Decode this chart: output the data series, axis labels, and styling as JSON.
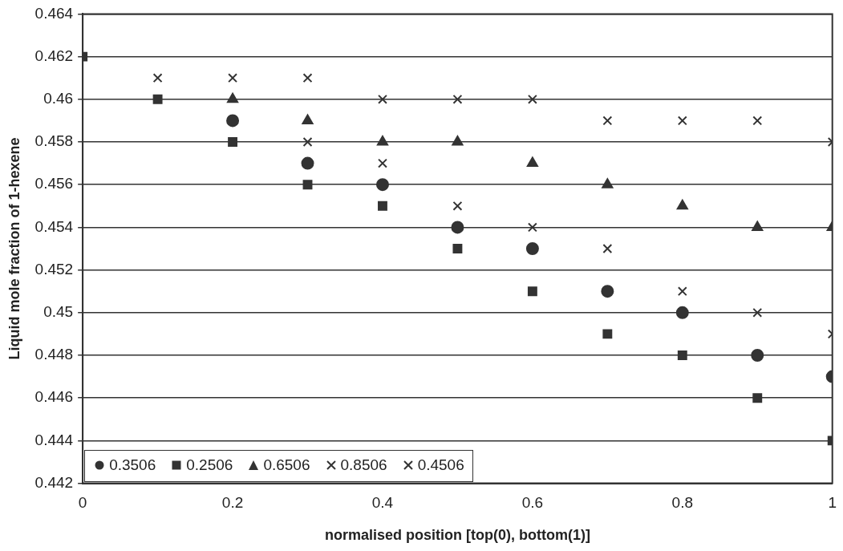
{
  "chart_data": {
    "type": "scatter",
    "xlabel": "normalised position [top(0), bottom(1)]",
    "ylabel": "Liquid mole fraction of 1-hexene",
    "x": [
      0,
      0.1,
      0.2,
      0.3,
      0.4,
      0.5,
      0.6,
      0.7,
      0.8,
      0.9,
      1
    ],
    "series": [
      {
        "name": "0.3506",
        "color": "#333333",
        "marker": "circle",
        "values": [
          null,
          null,
          0.459,
          0.457,
          0.456,
          0.454,
          0.453,
          0.451,
          0.45,
          0.448,
          0.447
        ]
      },
      {
        "name": "0.2506",
        "color": "#333333",
        "marker": "square",
        "values": [
          0.462,
          0.46,
          0.458,
          0.456,
          0.455,
          0.453,
          0.451,
          0.449,
          0.448,
          0.446,
          0.444
        ]
      },
      {
        "name": "0.6506",
        "color": "#333333",
        "marker": "triangle",
        "values": [
          null,
          null,
          0.46,
          0.459,
          0.458,
          0.458,
          0.457,
          0.456,
          0.455,
          0.454,
          0.454
        ]
      },
      {
        "name": "0.8506",
        "color": "#333333",
        "marker": "cross",
        "values": [
          null,
          null,
          0.461,
          0.461,
          0.46,
          0.46,
          0.46,
          0.459,
          0.459,
          0.459,
          0.458
        ]
      },
      {
        "name": "0.4506",
        "color": "#333333",
        "marker": "cross",
        "values": [
          null,
          0.461,
          null,
          0.458,
          0.457,
          0.455,
          0.454,
          0.453,
          0.451,
          0.45,
          0.449
        ]
      }
    ],
    "xlim": [
      0,
      1
    ],
    "xticks": [
      0,
      0.2,
      0.4,
      0.6,
      0.8,
      1
    ],
    "ylim": [
      0.442,
      0.464
    ],
    "yticks": [
      0.442,
      0.444,
      0.446,
      0.448,
      0.45,
      0.452,
      0.454,
      0.456,
      0.458,
      0.46,
      0.462,
      0.464
    ],
    "grid": "y",
    "legend": "bottom left"
  }
}
